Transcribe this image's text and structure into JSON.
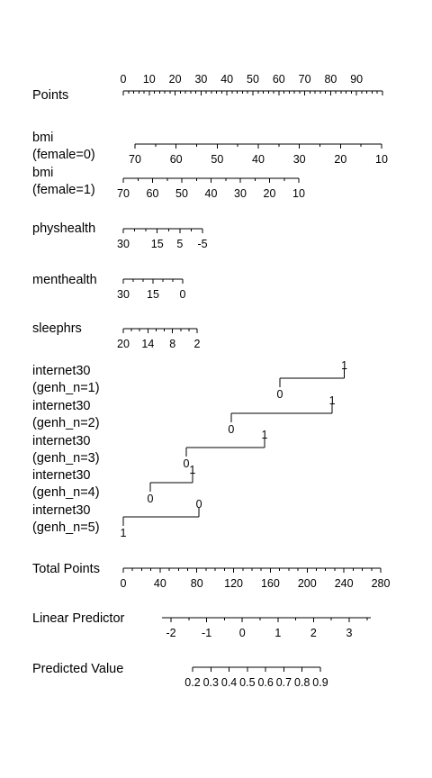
{
  "chart_data": {
    "type": "nomogram",
    "title": "",
    "axes": [
      {
        "label_lines": [
          "Points"
        ],
        "ticks": [
          0,
          10,
          20,
          30,
          40,
          50,
          60,
          70,
          80,
          90
        ],
        "tick_labels": [
          "0",
          "10",
          "20",
          "30",
          "40",
          "50",
          "60",
          "70",
          "80",
          "90"
        ],
        "points_range": [
          0,
          100
        ],
        "minor_step": 2,
        "labels_above": true
      },
      {
        "label_lines": [
          "bmi",
          "(female=0)"
        ],
        "ticks": [
          70,
          60,
          50,
          40,
          30,
          20,
          10
        ],
        "tick_labels": [
          "70",
          "60",
          "50",
          "40",
          "30",
          "20",
          "10"
        ],
        "minor_step": 5,
        "labels_above": false
      },
      {
        "label_lines": [
          "bmi",
          "(female=1)"
        ],
        "ticks": [
          70,
          60,
          50,
          40,
          30,
          20,
          10
        ],
        "tick_labels": [
          "70",
          "60",
          "50",
          "40",
          "30",
          "20",
          "10"
        ],
        "minor_step": 5,
        "labels_above": false
      },
      {
        "label_lines": [
          "physhealth"
        ],
        "ticks": [
          30,
          15,
          5,
          -5
        ],
        "tick_labels": [
          "30",
          "15",
          "5",
          "-5"
        ],
        "minor_step": 5,
        "labels_above": false
      },
      {
        "label_lines": [
          "menthealth"
        ],
        "ticks": [
          30,
          15,
          0
        ],
        "tick_labels": [
          "30",
          "15",
          "0"
        ],
        "minor_step": 5,
        "labels_above": false
      },
      {
        "label_lines": [
          "sleephrs"
        ],
        "ticks": [
          20,
          14,
          8,
          2
        ],
        "tick_labels": [
          "20",
          "14",
          "8",
          "2"
        ],
        "minor_step": 2,
        "labels_above": false
      },
      {
        "label_lines": [
          "internet30",
          "(genh_n=1)"
        ],
        "categories": [
          {
            "label": "0",
            "points": 60.4
          },
          {
            "label": "1",
            "points": 85.3
          }
        ],
        "categorical": true
      },
      {
        "label_lines": [
          "internet30",
          "(genh_n=2)"
        ],
        "categories": [
          {
            "label": "0",
            "points": 41.6
          },
          {
            "label": "1",
            "points": 80.6
          }
        ],
        "categorical": true
      },
      {
        "label_lines": [
          "internet30",
          "(genh_n=3)"
        ],
        "categories": [
          {
            "label": "0",
            "points": 24.3
          },
          {
            "label": "1",
            "points": 54.5
          }
        ],
        "categorical": true
      },
      {
        "label_lines": [
          "internet30",
          "(genh_n=4)"
        ],
        "categories": [
          {
            "label": "0",
            "points": 10.4
          },
          {
            "label": "1",
            "points": 26.7
          }
        ],
        "categorical": true
      },
      {
        "label_lines": [
          "internet30",
          "(genh_n=5)"
        ],
        "categories": [
          {
            "label": "0",
            "points": 29.2
          },
          {
            "label": "1",
            "points": 0
          }
        ],
        "categorical": true
      },
      {
        "label_lines": [
          "Total Points"
        ],
        "ticks": [
          0,
          40,
          80,
          120,
          160,
          200,
          240,
          280
        ],
        "tick_labels": [
          "0",
          "40",
          "80",
          "120",
          "160",
          "200",
          "240",
          "280"
        ],
        "minor_step": 10,
        "labels_above": false
      },
      {
        "label_lines": [
          "Linear Predictor"
        ],
        "ticks": [
          -2,
          -1,
          0,
          1,
          2,
          3
        ],
        "tick_labels": [
          "-2",
          "-1",
          "0",
          "1",
          "2",
          "3"
        ],
        "minor_step": 0.5,
        "labels_above": false
      },
      {
        "label_lines": [
          "Predicted Value"
        ],
        "ticks": [
          0.2,
          0.3,
          0.4,
          0.5,
          0.6,
          0.7,
          0.8,
          0.9
        ],
        "tick_labels": [
          "0.2",
          "0.3",
          "0.4",
          "0.5",
          "0.6",
          "0.7",
          "0.8",
          "0.9"
        ],
        "labels_above": false
      }
    ]
  }
}
